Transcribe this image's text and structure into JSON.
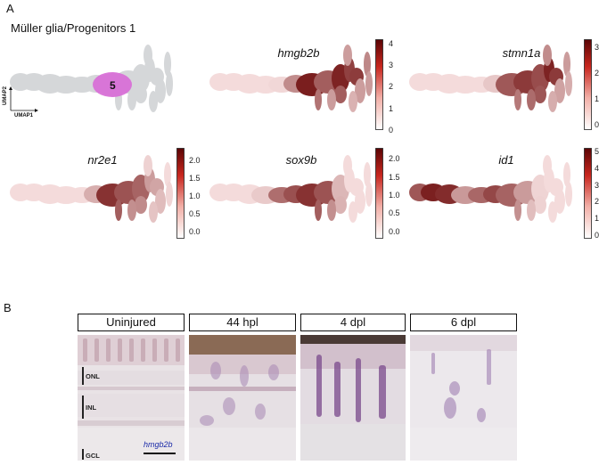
{
  "figure": {
    "panel_a_letter": "A",
    "panel_b_letter": "B",
    "cluster_title": "Müller glia/Progenitors 1",
    "cluster_number": "5",
    "umap_axis_x": "UMAP1",
    "umap_axis_y": "UMAP2",
    "colors": {
      "cluster_background": "#d5d7d9",
      "cluster_highlight": "#d86ad6",
      "expr_low": "#fbe6e6",
      "expr_high": "#6a0606",
      "header_border": "#111111",
      "stain_label": "#1a2aa8"
    }
  },
  "chart_data": [
    {
      "type": "scatter",
      "title": "hmgb2b",
      "colorbar_ticks": [
        "0",
        "1",
        "2",
        "3",
        "4"
      ],
      "colorbar_range": [
        0,
        4.2
      ]
    },
    {
      "type": "scatter",
      "title": "stmn1a",
      "colorbar_ticks": [
        "0",
        "1",
        "2",
        "3"
      ],
      "colorbar_range": [
        -0.2,
        3.3
      ]
    },
    {
      "type": "scatter",
      "title": "nr2e1",
      "colorbar_ticks": [
        "0.0",
        "0.5",
        "1.0",
        "1.5",
        "2.0"
      ],
      "colorbar_range": [
        -0.2,
        2.35
      ]
    },
    {
      "type": "scatter",
      "title": "sox9b",
      "colorbar_ticks": [
        "0.0",
        "0.5",
        "1.0",
        "1.5",
        "2.0"
      ],
      "colorbar_range": [
        -0.2,
        2.3
      ]
    },
    {
      "type": "scatter",
      "title": "id1",
      "colorbar_ticks": [
        "0",
        "1",
        "2",
        "3",
        "4",
        "5"
      ],
      "colorbar_range": [
        -0.2,
        5.2
      ]
    }
  ],
  "sections": {
    "headers": [
      "Uninjured",
      "44 hpl",
      "4 dpl",
      "6 dpl"
    ],
    "layers": [
      "ONL",
      "INL",
      "GCL"
    ],
    "stain_label": "hmgb2b"
  }
}
